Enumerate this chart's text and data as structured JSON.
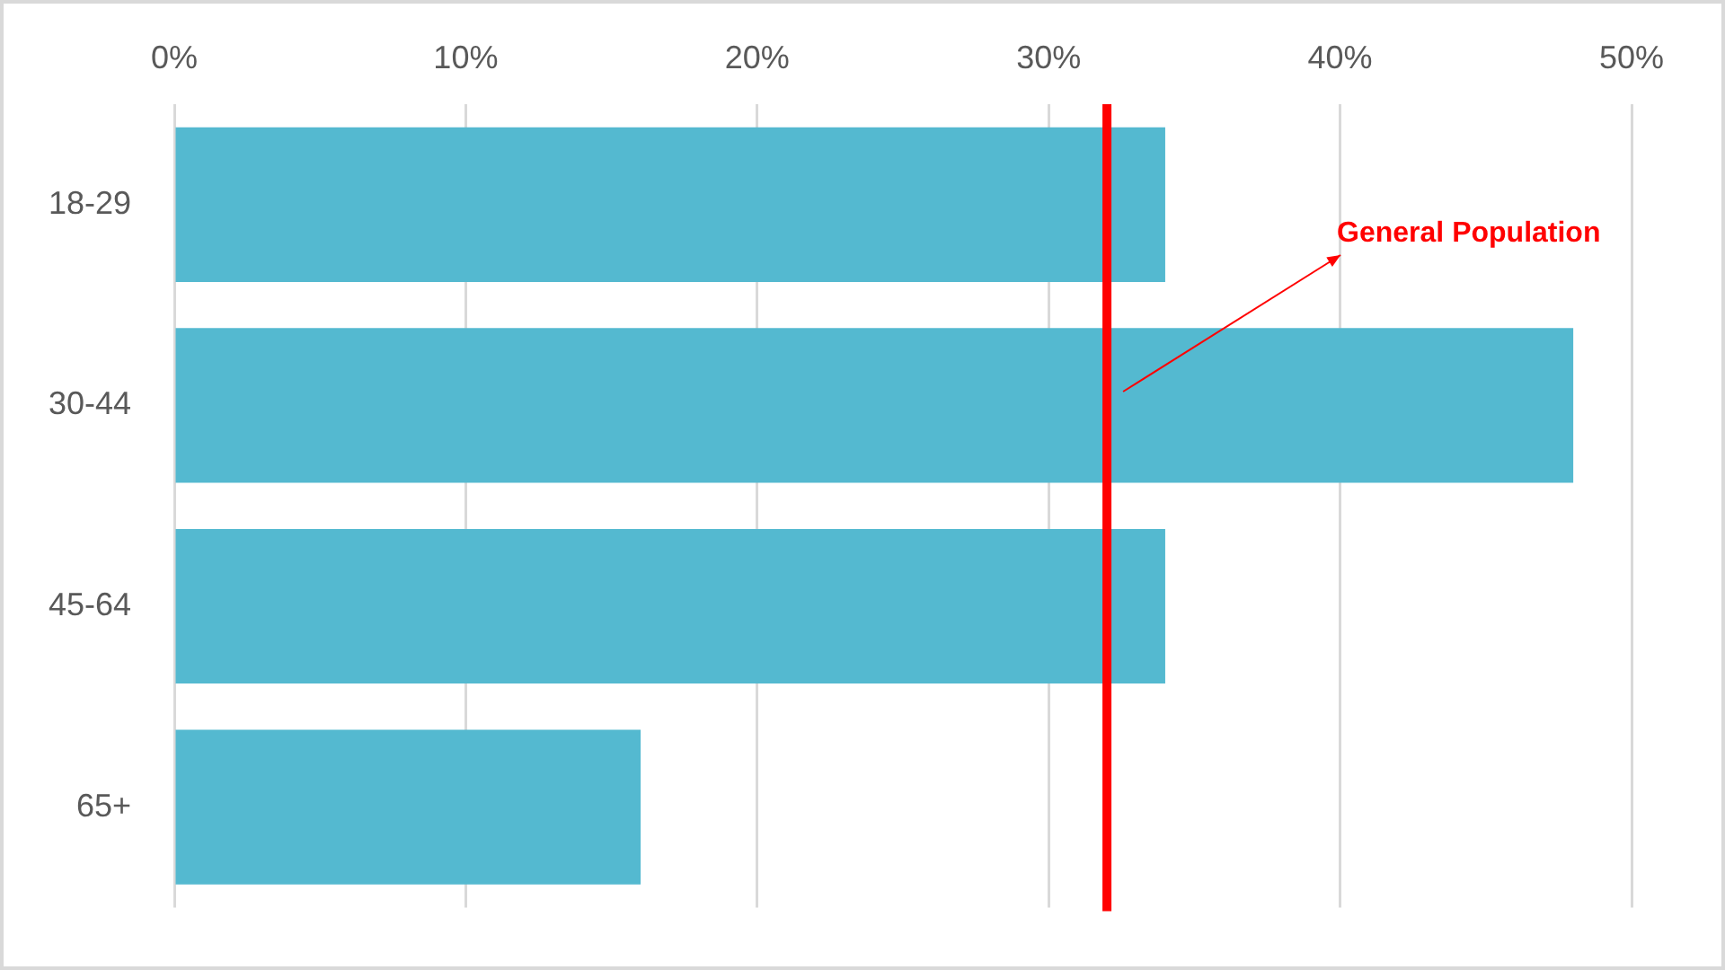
{
  "chart_data": {
    "type": "bar",
    "orientation": "horizontal",
    "categories": [
      "18-29",
      "30-44",
      "45-64",
      "65+"
    ],
    "values": [
      34,
      48,
      34,
      16
    ],
    "color": "#54b9d0",
    "xlim": [
      0,
      50
    ],
    "xticks": [
      {
        "value": 0,
        "label": "0%"
      },
      {
        "value": 10,
        "label": "10%"
      },
      {
        "value": 20,
        "label": "20%"
      },
      {
        "value": 30,
        "label": "30%"
      },
      {
        "value": 40,
        "label": "40%"
      },
      {
        "value": 50,
        "label": "50%"
      }
    ],
    "grid": "x",
    "legend": false,
    "ref_lines": [
      {
        "axis": "x",
        "value": 32,
        "label": "General Population",
        "color": "#ff0000"
      }
    ]
  }
}
